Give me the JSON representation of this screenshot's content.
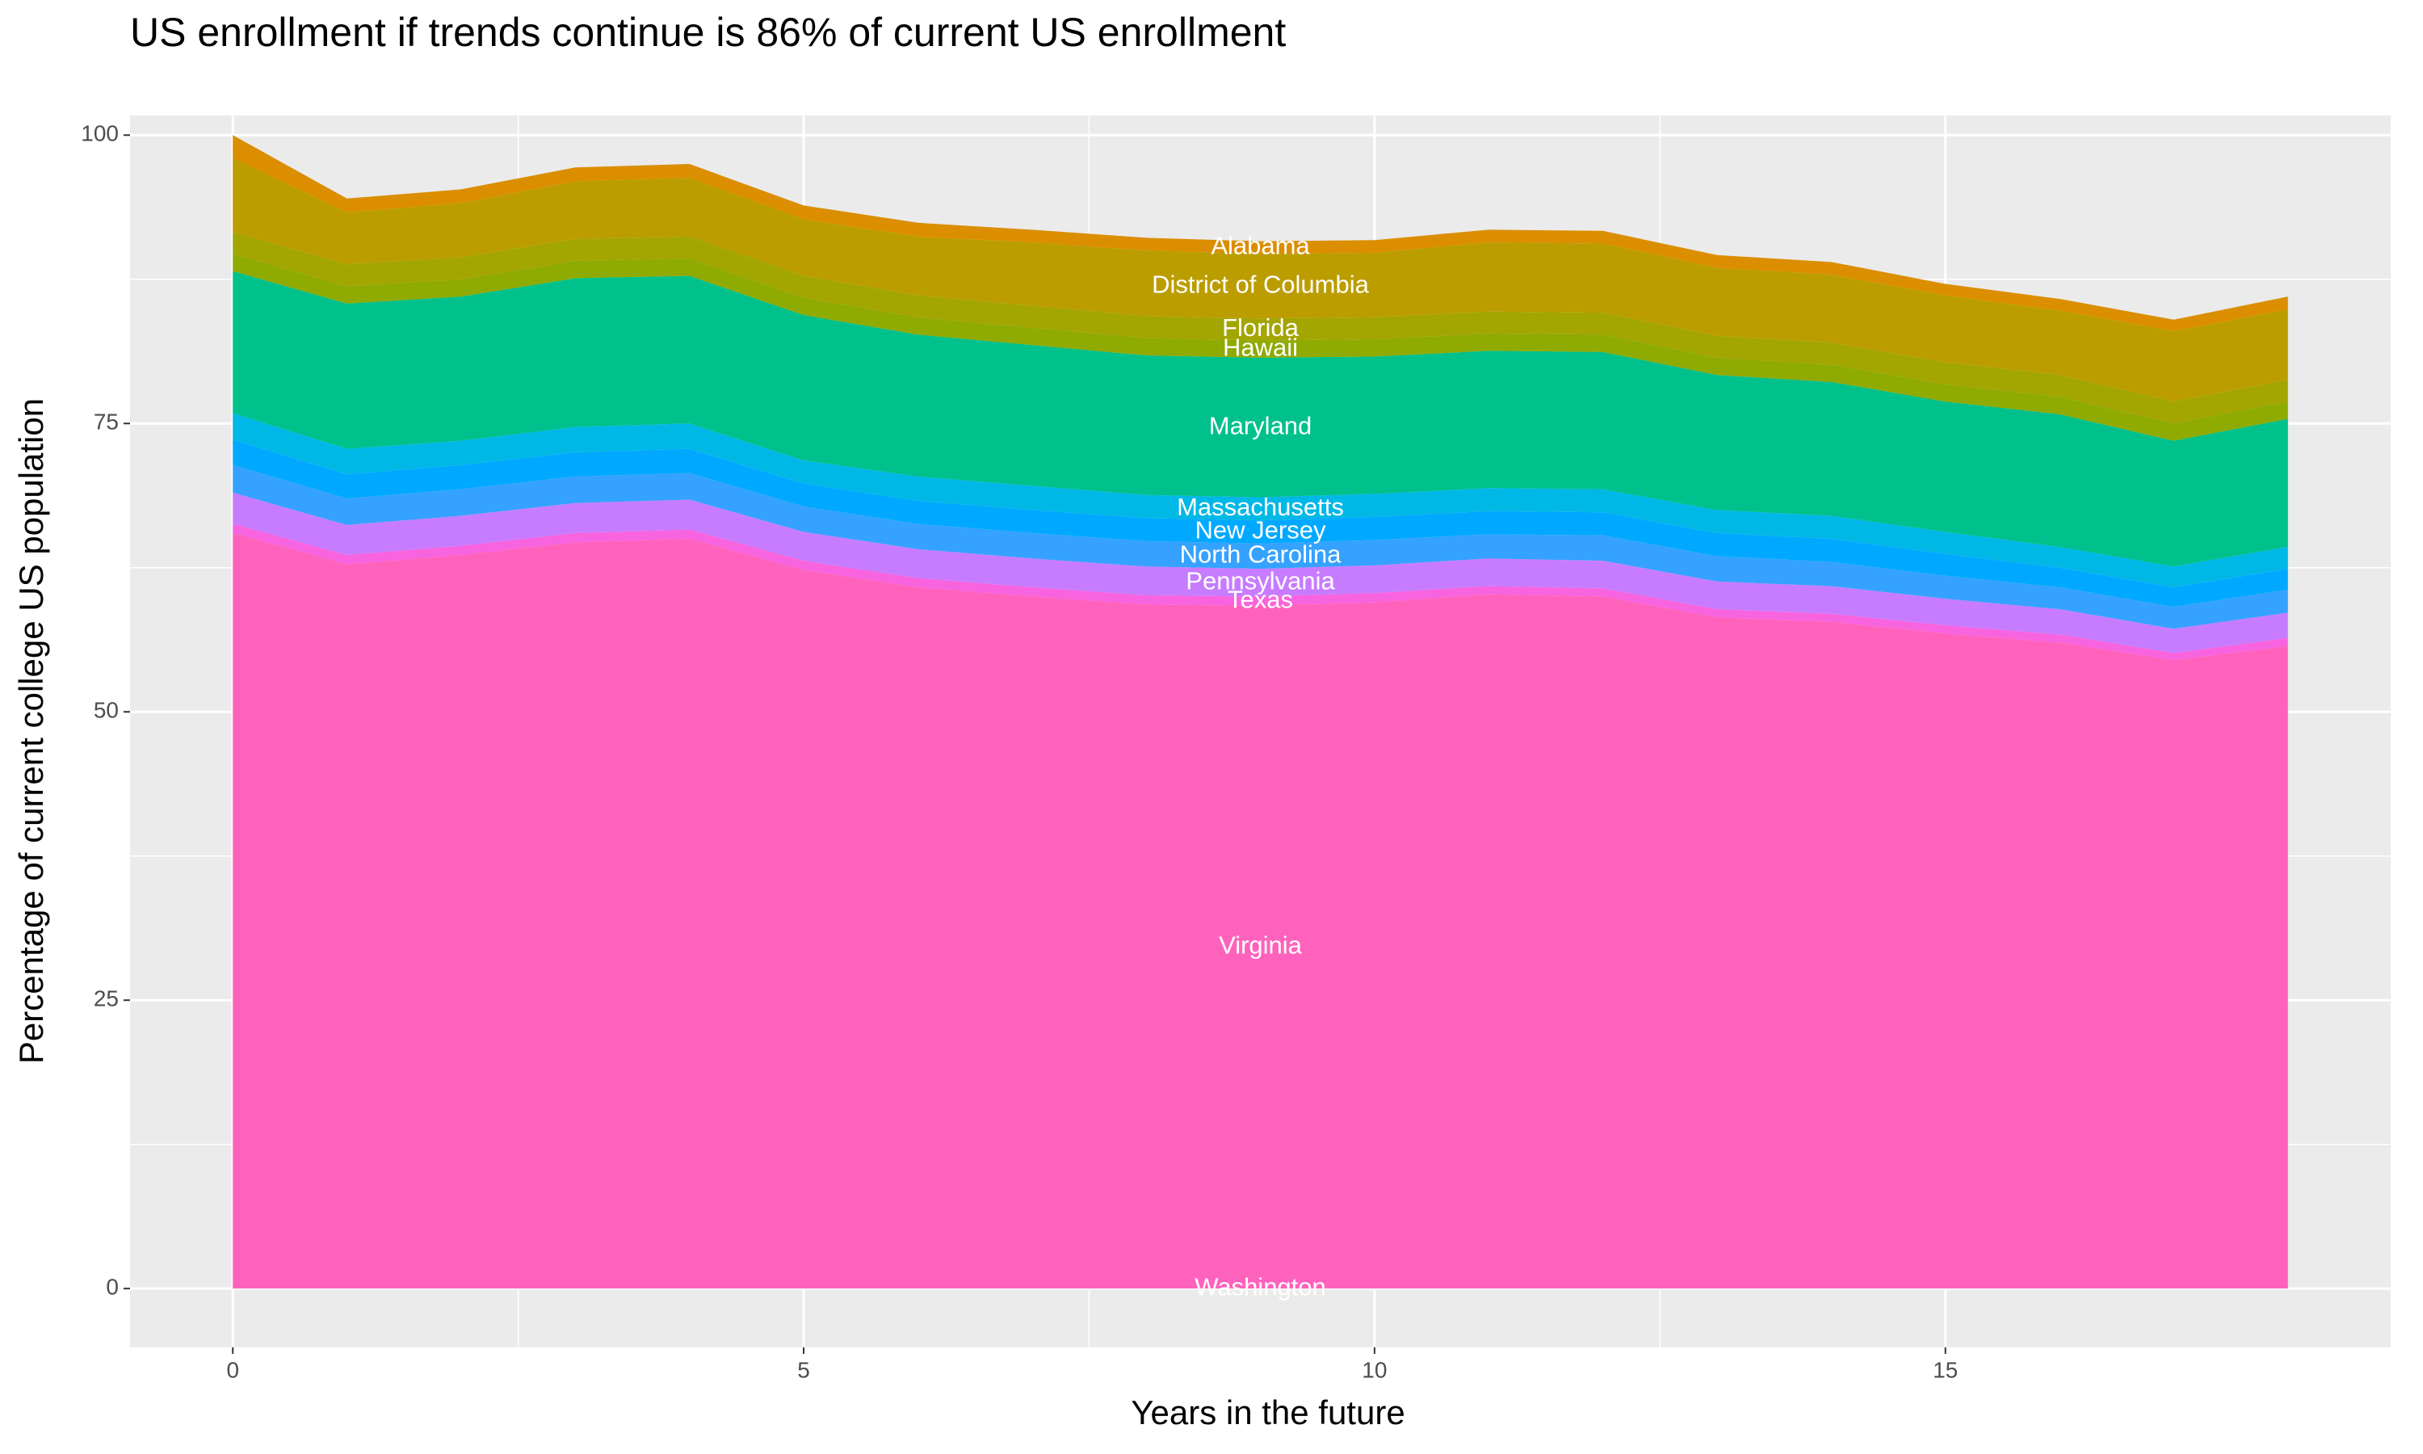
{
  "chart_data": {
    "type": "stacked_area",
    "title": "US enrollment if trends continue is 86% of current US enrollment",
    "x_label": "Years in the future",
    "y_label": "Percentage of current college US population",
    "x": [
      0,
      1,
      2,
      3,
      4,
      5,
      6,
      7,
      8,
      9,
      10,
      11,
      12,
      13,
      14,
      15,
      16,
      17,
      18
    ],
    "xlim": [
      -0.9,
      18.9
    ],
    "ylim": [
      -5.1,
      101.7
    ],
    "xticks": [
      0,
      5,
      10,
      15
    ],
    "yticks": [
      0,
      25,
      50,
      75,
      100
    ],
    "grid": true,
    "series": [
      {
        "name": "Washington",
        "color": "#FF6C91",
        "values": [
          0,
          0,
          0,
          0,
          0,
          0,
          0,
          0,
          0,
          0,
          0,
          0,
          0,
          0,
          0,
          0,
          0,
          0,
          0
        ]
      },
      {
        "name": "Virginia",
        "color": "#FF62BC",
        "values": [
          65.5,
          62.8,
          63.6,
          64.7,
          65.0,
          62.3,
          60.8,
          60.0,
          59.3,
          59.2,
          59.5,
          60.2,
          60.0,
          58.2,
          57.8,
          56.8,
          56.0,
          54.5,
          55.7
        ]
      },
      {
        "name": "Texas",
        "color": "#F863DF",
        "values": [
          0.8,
          0.8,
          0.8,
          0.8,
          0.8,
          0.8,
          0.8,
          0.8,
          0.8,
          0.8,
          0.8,
          0.7,
          0.7,
          0.7,
          0.7,
          0.7,
          0.7,
          0.6,
          0.7
        ]
      },
      {
        "name": "Pennsylvania",
        "color": "#C77CFF",
        "values": [
          2.7,
          2.6,
          2.6,
          2.6,
          2.6,
          2.5,
          2.5,
          2.5,
          2.5,
          2.4,
          2.4,
          2.4,
          2.4,
          2.4,
          2.4,
          2.3,
          2.2,
          2.1,
          2.2
        ]
      },
      {
        "name": "North Carolina",
        "color": "#35A2FF",
        "values": [
          2.4,
          2.3,
          2.3,
          2.3,
          2.3,
          2.2,
          2.2,
          2.2,
          2.2,
          2.2,
          2.2,
          2.1,
          2.2,
          2.2,
          2.1,
          2.0,
          1.9,
          1.9,
          2.0
        ]
      },
      {
        "name": "New Jersey",
        "color": "#00A9FF",
        "values": [
          2.2,
          2.1,
          2.1,
          2.1,
          2.1,
          2.0,
          2.0,
          2.0,
          2.0,
          2.0,
          2.0,
          2.0,
          2.0,
          2.0,
          2.0,
          1.9,
          1.7,
          1.7,
          1.8
        ]
      },
      {
        "name": "Massachusetts",
        "color": "#00B8E5",
        "values": [
          2.3,
          2.2,
          2.1,
          2.2,
          2.2,
          2.0,
          2.1,
          2.1,
          2.0,
          2.0,
          2.0,
          2.0,
          2.0,
          2.0,
          2.0,
          1.9,
          1.8,
          1.8,
          1.9
        ]
      },
      {
        "name": "Maryland",
        "color": "#00C08B",
        "values": [
          12.3,
          12.6,
          12.5,
          12.9,
          12.8,
          12.6,
          12.3,
          12.2,
          12.1,
          12.1,
          11.9,
          11.9,
          11.9,
          11.7,
          11.6,
          11.3,
          11.5,
          10.9,
          11.1
        ]
      },
      {
        "name": "Hawaii",
        "color": "#8FAA00",
        "values": [
          1.5,
          1.5,
          1.5,
          1.5,
          1.5,
          1.5,
          1.5,
          1.5,
          1.5,
          1.5,
          1.5,
          1.5,
          1.5,
          1.5,
          1.5,
          1.5,
          1.5,
          1.5,
          1.5
        ]
      },
      {
        "name": "Florida",
        "color": "#A3A500",
        "values": [
          1.9,
          1.9,
          1.9,
          1.9,
          1.9,
          1.9,
          1.9,
          1.9,
          1.9,
          1.9,
          1.9,
          1.9,
          1.9,
          1.9,
          1.9,
          1.9,
          1.9,
          1.9,
          1.9
        ]
      },
      {
        "name": "District of Columbia",
        "color": "#BB9D00",
        "values": [
          6.4,
          4.5,
          4.7,
          5.0,
          5.1,
          4.9,
          5.1,
          5.5,
          5.7,
          5.6,
          5.6,
          6.0,
          6.0,
          5.9,
          5.9,
          5.8,
          5.6,
          6.1,
          6.1
        ]
      },
      {
        "name": "Alabama",
        "color": "#DB8E00",
        "values": [
          2.0,
          1.2,
          1.2,
          1.2,
          1.2,
          1.2,
          1.2,
          1.1,
          1.1,
          1.1,
          1.1,
          1.1,
          1.1,
          1.1,
          1.1,
          1.0,
          1.0,
          1.0,
          1.1
        ]
      }
    ]
  }
}
